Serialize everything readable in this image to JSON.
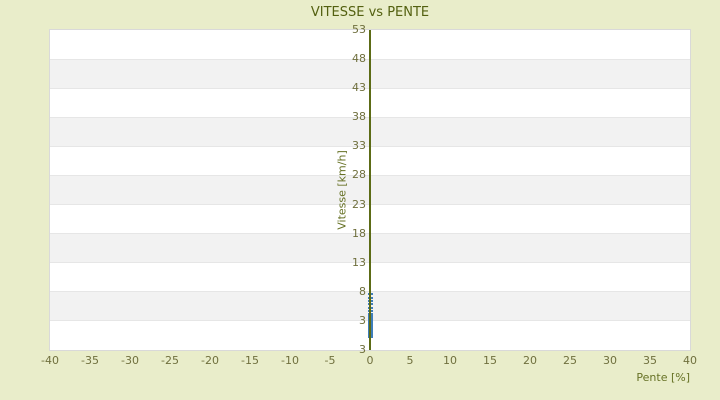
{
  "colors": {
    "page_background": "#e9edca",
    "plot_background": "#ffffff",
    "band_alt": "#f2f2f2",
    "gridline": "#e6e6e6",
    "plot_border": "#d9d9d9",
    "title_text": "#536010",
    "tick_text": "#6f6f3d",
    "axis_title_text": "#677226",
    "zero_line": "#5c6b16",
    "point": "#3e7db9"
  },
  "chart_data": {
    "type": "scatter",
    "title": "VITESSE vs PENTE",
    "xlabel": "Pente [%]",
    "ylabel": "Vitesse [km/h]",
    "xlim": [
      -40,
      40
    ],
    "ylim": [
      -2,
      53
    ],
    "x_ticks": [
      -40,
      -35,
      -30,
      -25,
      -20,
      -15,
      -10,
      -5,
      0,
      5,
      10,
      15,
      20,
      25,
      30,
      35,
      40
    ],
    "y_tick_labels": [
      "53",
      "48",
      "43",
      "38",
      "33",
      "28",
      "23",
      "18",
      "13",
      "8",
      "3",
      "3"
    ],
    "grid": "horizontal gridlines with alternating white/gray bands",
    "legend": "none",
    "zero_line_x": 0,
    "series": [
      {
        "name": "Vitesse",
        "color": "#3e7db9",
        "points": [
          [
            0,
            0.3
          ],
          [
            0,
            0.6
          ],
          [
            0,
            0.9
          ],
          [
            0,
            1.2
          ],
          [
            0,
            1.5
          ],
          [
            0,
            1.8
          ],
          [
            0,
            2.1
          ],
          [
            0,
            2.4
          ],
          [
            0,
            2.7
          ],
          [
            0,
            3.0
          ],
          [
            0,
            3.3
          ],
          [
            0,
            3.6
          ],
          [
            0,
            3.9
          ],
          [
            0,
            4.2
          ],
          [
            0,
            4.7
          ],
          [
            0,
            5.2
          ],
          [
            0,
            5.9
          ],
          [
            0,
            6.4
          ],
          [
            0,
            7.0
          ],
          [
            0,
            7.7
          ]
        ]
      }
    ]
  }
}
